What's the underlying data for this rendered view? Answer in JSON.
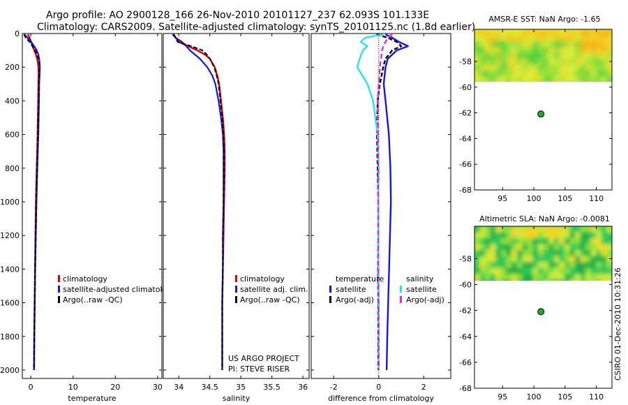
{
  "header": {
    "line1": "Argo profile: AO 2900128_166 26-Nov-2010 20101127_237 62.093S 101.133E",
    "line2": "Climatology: CARS2009. Satellite-adjusted climatology: synTS_20101125.nc (1.8d earlier)"
  },
  "side_text": "CSIRO 01-Dec-2010 10:31:26",
  "colors": {
    "climatology": "#e00000",
    "satellite_adj": "#1414e6",
    "argo": "#000000",
    "sat_salinity": "#22e5e5",
    "argo_salinity": "#ee22ee",
    "marker": "#22aa22",
    "map_bg": "#e4ef3a"
  },
  "chart_data": [
    {
      "id": "temperature",
      "type": "line",
      "xlabel": "temperature",
      "ylabel": "",
      "xlim": [
        -2,
        31
      ],
      "ylim": [
        2050,
        0
      ],
      "xticks": [
        0,
        10,
        20,
        30
      ],
      "yticks": [
        0,
        200,
        400,
        600,
        800,
        1000,
        1200,
        1400,
        1600,
        1800,
        2000
      ],
      "legend": [
        "climatology",
        "satellite-adjusted climatolog",
        "Argo(..raw -QC)"
      ],
      "series": [
        {
          "name": "climatology",
          "color": "#e00000",
          "width": 2.4,
          "depth": [
            5,
            25,
            50,
            75,
            100,
            125,
            150,
            175,
            200,
            250,
            300,
            400,
            600,
            800,
            1000,
            1200,
            1400,
            1600,
            1800,
            2000
          ],
          "x": [
            -0.7,
            -0.3,
            0.1,
            0.4,
            0.8,
            1.2,
            1.5,
            1.7,
            1.8,
            1.85,
            1.8,
            1.75,
            1.6,
            1.4,
            1.2,
            1.1,
            1.0,
            0.9,
            0.8,
            0.75
          ]
        },
        {
          "name": "satellite-adjusted climatolog",
          "color": "#1414e6",
          "width": 2.2,
          "depth": [
            5,
            25,
            50,
            75,
            100,
            125,
            150,
            175,
            200,
            250,
            300,
            400,
            600,
            800,
            1000,
            1200,
            1400,
            1600,
            1800,
            2000
          ],
          "x": [
            -1.5,
            -0.8,
            0.1,
            0.8,
            1.4,
            1.8,
            2.0,
            2.1,
            2.15,
            2.1,
            2.0,
            1.95,
            1.8,
            1.55,
            1.35,
            1.2,
            1.05,
            0.95,
            0.85,
            0.8
          ]
        },
        {
          "name": "Argo(..raw -QC)",
          "color": "#000000",
          "width": 2,
          "dash": "6,3",
          "depth": [
            5,
            25,
            50,
            75,
            100,
            125,
            150,
            175,
            200,
            250,
            300,
            400,
            600,
            800,
            1000,
            1200,
            1400,
            1600,
            1800,
            2000
          ],
          "x": [
            -1.6,
            -1.2,
            -0.3,
            0.4,
            1.0,
            1.5,
            1.8,
            1.95,
            2.0,
            1.95,
            1.9,
            1.85,
            1.7,
            1.5,
            1.3,
            1.15,
            1.0,
            0.9,
            0.8,
            0.75
          ]
        }
      ]
    },
    {
      "id": "salinity",
      "type": "line",
      "xlabel": "salinity",
      "ylabel": "",
      "xlim": [
        33.75,
        36.1
      ],
      "ylim": [
        2050,
        0
      ],
      "xticks": [
        34,
        34.5,
        35,
        35.5,
        36
      ],
      "xticklabels": [
        "34",
        "34.5",
        "35",
        "35.5",
        "36"
      ],
      "yticks": [
        0,
        200,
        400,
        600,
        800,
        1000,
        1200,
        1400,
        1600,
        1800,
        2000
      ],
      "legend": [
        "climatology",
        "satellite adj. clim.",
        "Argo(..raw -QC)"
      ],
      "annotation": [
        "US ARGO PROJECT",
        "PI: STEVE RISER"
      ],
      "series": [
        {
          "name": "climatology",
          "color": "#e00000",
          "width": 2.4,
          "depth": [
            5,
            25,
            50,
            75,
            100,
            125,
            150,
            200,
            250,
            300,
            400,
            500,
            600,
            700,
            800,
            1000,
            1200,
            1400,
            1600,
            1800,
            2000
          ],
          "x": [
            33.9,
            33.95,
            34.0,
            34.15,
            34.3,
            34.42,
            34.5,
            34.58,
            34.62,
            34.65,
            34.68,
            34.71,
            34.73,
            34.74,
            34.74,
            34.73,
            34.72,
            34.71,
            34.7,
            34.7,
            34.7
          ]
        },
        {
          "name": "satellite adj. clim.",
          "color": "#1414e6",
          "width": 2.2,
          "depth": [
            5,
            25,
            50,
            75,
            100,
            125,
            150,
            200,
            250,
            300,
            400,
            500,
            600,
            700,
            800,
            1000,
            1200,
            1400,
            1600,
            1800,
            2000
          ],
          "x": [
            33.9,
            33.95,
            34.05,
            34.12,
            34.18,
            34.26,
            34.34,
            34.46,
            34.54,
            34.59,
            34.64,
            34.68,
            34.71,
            34.72,
            34.72,
            34.72,
            34.71,
            34.71,
            34.7,
            34.7,
            34.7
          ]
        },
        {
          "name": "Argo(..raw -QC)",
          "color": "#000000",
          "width": 2,
          "dash": "6,3",
          "depth": [
            5,
            25,
            50,
            75,
            100,
            125,
            150,
            200,
            250,
            300,
            400,
            500,
            600,
            700,
            800,
            1000,
            1200,
            1400,
            1600,
            1800,
            2000
          ],
          "x": [
            33.92,
            33.95,
            33.98,
            34.2,
            34.38,
            34.45,
            34.5,
            34.57,
            34.61,
            34.64,
            34.67,
            34.7,
            34.72,
            34.73,
            34.73,
            34.72,
            34.71,
            34.71,
            34.7,
            34.7,
            34.7
          ]
        }
      ]
    },
    {
      "id": "difference",
      "type": "line",
      "xlabel": "difference from climatology",
      "ylabel": "",
      "xlim": [
        -3,
        3.2
      ],
      "ylim": [
        2050,
        0
      ],
      "xticks": [
        -2,
        0,
        2
      ],
      "yticks": [
        0,
        200,
        400,
        600,
        800,
        1000,
        1200,
        1400,
        1600,
        1800,
        2000
      ],
      "legend_left_title": "temperature",
      "legend_right_title": "salinity",
      "legend": [
        "satellite",
        "Argo(-adj)",
        "satellite",
        "Argo(-adj)"
      ],
      "series": [
        {
          "name": "temperature satellite",
          "color": "#1414e6",
          "width": 2.4,
          "depth": [
            5,
            25,
            50,
            75,
            100,
            150,
            200,
            300,
            400,
            600,
            800,
            1000,
            1200,
            1400,
            1600,
            1800,
            2000
          ],
          "x": [
            0.3,
            0.6,
            0.9,
            1.3,
            0.8,
            0.4,
            0.3,
            0.22,
            0.3,
            0.45,
            0.52,
            0.54,
            0.5,
            0.46,
            0.42,
            0.38,
            0.35
          ]
        },
        {
          "name": "temperature Argo(-adj)",
          "color": "#000000",
          "width": 2.4,
          "dash": "6,3",
          "depth": [
            5,
            25,
            50,
            75,
            100,
            150,
            200,
            300,
            400,
            600,
            800,
            1000,
            1200,
            1400,
            1600,
            1800,
            2000
          ],
          "x": [
            -0.1,
            0.4,
            0.8,
            1.0,
            0.6,
            0.3,
            0.2,
            0.05,
            -0.05,
            -0.08,
            -0.05,
            -0.02,
            -0.02,
            -0.03,
            -0.02,
            -0.02,
            -0.02
          ]
        },
        {
          "name": "salinity satellite",
          "color": "#22e5e5",
          "width": 2.4,
          "depth": [
            5,
            25,
            50,
            75,
            100,
            150,
            200,
            300,
            400,
            500,
            600,
            800,
            1000,
            1200,
            1400,
            1600,
            1800,
            2000
          ],
          "x": [
            0.2,
            -0.6,
            -0.8,
            -0.5,
            -0.7,
            -0.85,
            -0.95,
            -0.5,
            -0.25,
            -0.15,
            -0.05,
            0.0,
            -0.02,
            -0.02,
            -0.01,
            0.0,
            0.0,
            0.0
          ]
        },
        {
          "name": "salinity Argo(-adj)",
          "color": "#ee22ee",
          "width": 2.4,
          "dash": "7,4",
          "depth": [
            5,
            25,
            50,
            75,
            100,
            150,
            200,
            300,
            400,
            600,
            800,
            1000,
            1200,
            1400,
            1600,
            1800,
            2000
          ],
          "x": [
            0.6,
            0.4,
            0.3,
            0.2,
            0.15,
            0.1,
            0.05,
            0.0,
            -0.05,
            -0.03,
            -0.02,
            -0.02,
            -0.02,
            -0.02,
            -0.01,
            0.0,
            0.0
          ]
        }
      ]
    },
    {
      "id": "sst_map",
      "type": "heatmap",
      "title": "AMSR-E SST: NaN Argo: -1.65",
      "xlim": [
        90.5,
        112.5
      ],
      "ylim": [
        -68,
        -55.5
      ],
      "xticks": [
        95,
        100,
        105,
        110
      ],
      "yticks": [
        -58,
        -60,
        -62,
        -64,
        -66,
        -68
      ],
      "data_lat_range": [
        -60.1,
        -55.5
      ],
      "argo_position": {
        "lon": 101.133,
        "lat": -62.093
      }
    },
    {
      "id": "sla_map",
      "type": "heatmap",
      "title": "Altimetric SLA: NaN Argo: -0.0081",
      "xlim": [
        90.5,
        112.5
      ],
      "ylim": [
        -68,
        -55.5
      ],
      "xticks": [
        95,
        100,
        105,
        110
      ],
      "yticks": [
        -58,
        -60,
        -62,
        -64,
        -66,
        -68
      ],
      "data_lat_range": [
        -60.1,
        -55.5
      ],
      "argo_position": {
        "lon": 101.133,
        "lat": -62.093
      }
    }
  ]
}
